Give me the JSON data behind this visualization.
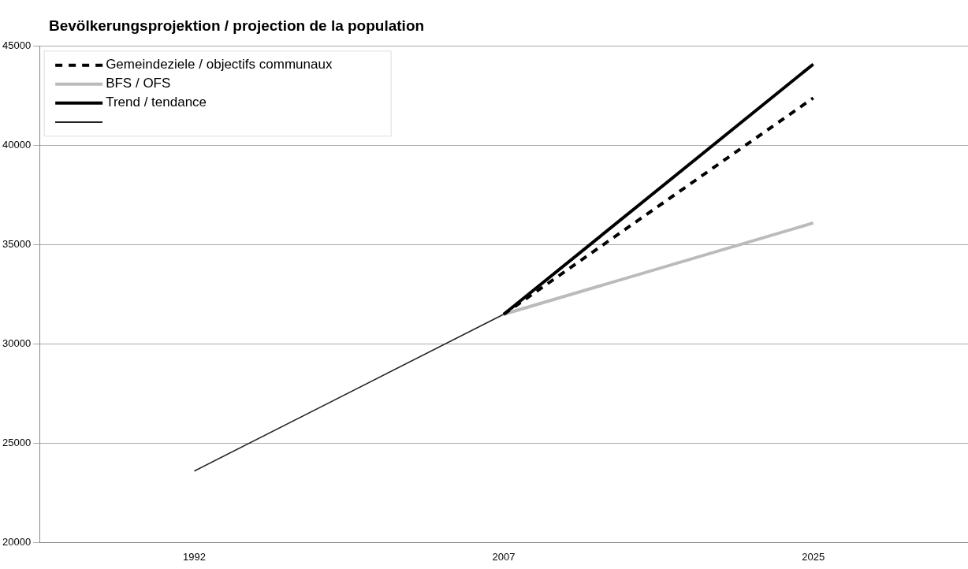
{
  "chart_data": {
    "type": "line",
    "title": "Bevölkerungsprojektion / projection de la population",
    "categories": [
      "1992",
      "2007",
      "2025"
    ],
    "series": [
      {
        "name": "Gemeindeziele / objectifs communaux",
        "color": "#000000",
        "values": [
          null,
          31500,
          42400
        ],
        "line_style": "dashed"
      },
      {
        "name": "BFS / OFS",
        "color": "#bbbbbb",
        "values": [
          null,
          31500,
          36100
        ]
      },
      {
        "name": "Trend / tendance",
        "color": "#000000",
        "values": [
          null,
          31500,
          44100
        ]
      },
      {
        "color": "#222222",
        "values": [
          23600,
          31500,
          null
        ]
      }
    ],
    "ylim": [
      20000,
      45000
    ],
    "yticks": [
      20000,
      25000,
      30000,
      35000,
      40000,
      45000
    ],
    "grid": "y",
    "legend": "top left",
    "marker": "none",
    "line_style": "solid"
  }
}
